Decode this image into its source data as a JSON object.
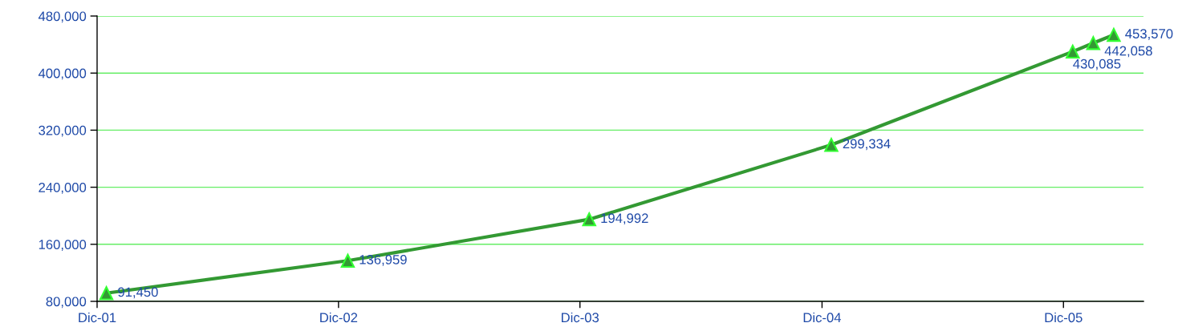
{
  "chart_data": {
    "type": "line",
    "x": [
      "2001-12-15",
      "2002-12-15",
      "2003-12-15",
      "2004-12-15",
      "2005-12-15",
      "2006-01-15",
      "2006-02-15"
    ],
    "series": [
      {
        "color": "#339933",
        "values": [
          91450,
          136959,
          194992,
          299334,
          430085,
          442058,
          453570
        ]
      }
    ],
    "value_labels": [
      "91,450",
      "136,959",
      "194,992",
      "299,334",
      "430,085",
      "442,058",
      "453,570"
    ],
    "xlim": [
      "2001-12-01",
      "2006-04-01"
    ],
    "xticks": [
      {
        "value": "2001-12-01",
        "label": "Dic-01"
      },
      {
        "value": "2002-12-01",
        "label": "Dic-02"
      },
      {
        "value": "2003-12-01",
        "label": "Dic-03"
      },
      {
        "value": "2004-12-01",
        "label": "Dic-04"
      },
      {
        "value": "2005-12-01",
        "label": "Dic-05"
      }
    ],
    "ylim": [
      80000,
      480000
    ],
    "yticks": [
      {
        "value": 80000,
        "label": "80,000"
      },
      {
        "value": 160000,
        "label": "160,000"
      },
      {
        "value": 240000,
        "label": "240,000"
      },
      {
        "value": 320000,
        "label": "320,000"
      },
      {
        "value": 400000,
        "label": "400,000"
      },
      {
        "value": 480000,
        "label": "480,000"
      }
    ],
    "grid": "y",
    "marker": "triangle",
    "line_style": "solid"
  }
}
